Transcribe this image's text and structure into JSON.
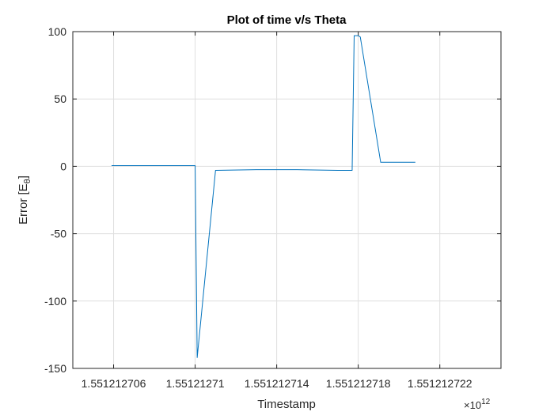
{
  "chart_data": {
    "type": "line",
    "title": "Plot of time v/s Theta",
    "xlabel": "Timestamp",
    "ylabel_main": "Error [E",
    "ylabel_sub": "θ",
    "ylabel_close": "]",
    "x_exponent_base": "×10",
    "x_exponent_power": "12",
    "xlim": [
      1.551212704,
      1.551212725
    ],
    "ylim": [
      -150,
      100
    ],
    "x_ticks": [
      1.551212706,
      1.55121271,
      1.551212714,
      1.551212718,
      1.551212722
    ],
    "x_tick_labels": [
      "1.551212706",
      "1.55121271",
      "1.551212714",
      "1.551212718",
      "1.551212722"
    ],
    "y_ticks": [
      -150,
      -100,
      -50,
      0,
      50,
      100
    ],
    "y_tick_labels": [
      "-150",
      "-100",
      "-50",
      "0",
      "50",
      "100"
    ],
    "grid": true,
    "line_color": "#0072BD",
    "series": [
      {
        "x": [
          1.5512127059,
          1.55121271,
          1.5512127101,
          1.551212711,
          1.551212713,
          1.551212715,
          1.551212717,
          1.5512127177,
          1.5512127178,
          1.551212718,
          1.5512127181,
          1.5512127191,
          1.5512127208
        ],
        "y": [
          0.5,
          0.5,
          -142,
          -3,
          -2.5,
          -2.5,
          -3,
          -3,
          97,
          97,
          96,
          3,
          3
        ]
      }
    ]
  }
}
